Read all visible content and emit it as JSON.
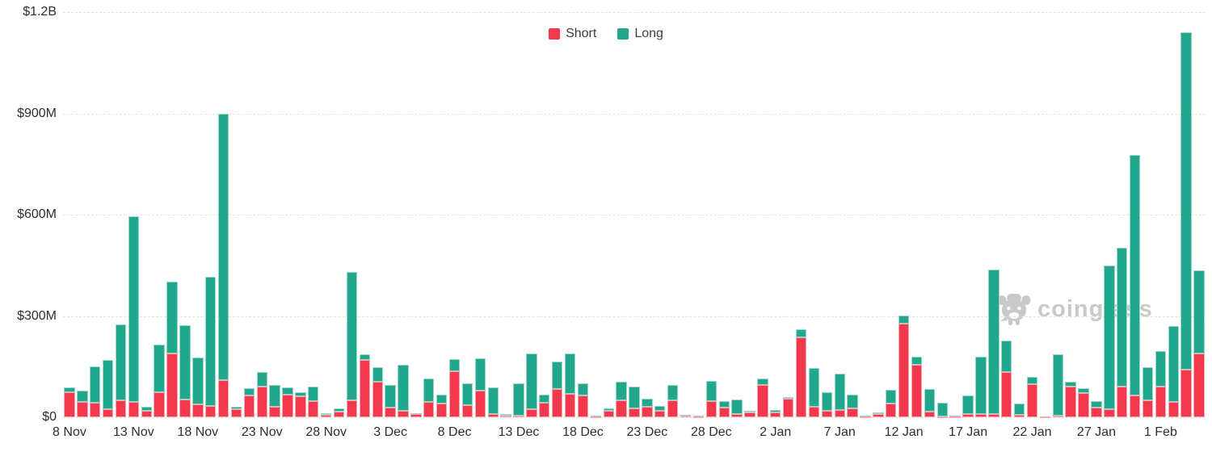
{
  "legend": {
    "items": [
      {
        "label": "Short",
        "color": "#f2394e"
      },
      {
        "label": "Long",
        "color": "#20a78c"
      }
    ]
  },
  "watermark": {
    "text": "coinglass"
  },
  "y_axis": {
    "ticks": [
      {
        "value": 0,
        "label": "$0"
      },
      {
        "value": 300,
        "label": "$300M"
      },
      {
        "value": 600,
        "label": "$600M"
      },
      {
        "value": 900,
        "label": "$900M"
      },
      {
        "value": 1200,
        "label": "$1.2B"
      }
    ]
  },
  "chart_data": {
    "type": "bar",
    "stacked": true,
    "unit": "USD millions",
    "ylim": [
      0,
      1200
    ],
    "grid": "horizontal-dashed",
    "legend_position": "top-center",
    "categories": [
      "8 Nov",
      "9 Nov",
      "10 Nov",
      "11 Nov",
      "12 Nov",
      "13 Nov",
      "14 Nov",
      "15 Nov",
      "16 Nov",
      "17 Nov",
      "18 Nov",
      "19 Nov",
      "20 Nov",
      "21 Nov",
      "22 Nov",
      "23 Nov",
      "24 Nov",
      "25 Nov",
      "26 Nov",
      "27 Nov",
      "28 Nov",
      "29 Nov",
      "30 Nov",
      "1 Dec",
      "2 Dec",
      "3 Dec",
      "4 Dec",
      "5 Dec",
      "6 Dec",
      "7 Dec",
      "8 Dec",
      "9 Dec",
      "10 Dec",
      "11 Dec",
      "12 Dec",
      "13 Dec",
      "14 Dec",
      "15 Dec",
      "16 Dec",
      "17 Dec",
      "18 Dec",
      "19 Dec",
      "20 Dec",
      "21 Dec",
      "22 Dec",
      "23 Dec",
      "24 Dec",
      "25 Dec",
      "26 Dec",
      "27 Dec",
      "28 Dec",
      "29 Dec",
      "30 Dec",
      "31 Dec",
      "1 Jan",
      "2 Jan",
      "3 Jan",
      "4 Jan",
      "5 Jan",
      "6 Jan",
      "7 Jan",
      "8 Jan",
      "9 Jan",
      "10 Jan",
      "11 Jan",
      "12 Jan",
      "13 Jan",
      "14 Jan",
      "15 Jan",
      "16 Jan",
      "17 Jan",
      "18 Jan",
      "19 Jan",
      "20 Jan",
      "21 Jan",
      "22 Jan",
      "23 Jan",
      "24 Jan",
      "25 Jan",
      "26 Jan",
      "27 Jan",
      "28 Jan",
      "29 Jan",
      "30 Jan",
      "31 Jan",
      "1 Feb",
      "2 Feb",
      "3 Feb",
      "4 Feb"
    ],
    "x_tick_labels": [
      "8 Nov",
      "13 Nov",
      "18 Nov",
      "23 Nov",
      "28 Nov",
      "3 Dec",
      "8 Dec",
      "13 Dec",
      "18 Dec",
      "23 Dec",
      "28 Dec",
      "2 Jan",
      "7 Jan",
      "12 Jan",
      "17 Jan",
      "22 Jan",
      "27 Jan",
      "1 Feb"
    ],
    "x_tick_interval": 5,
    "series": [
      {
        "name": "Short",
        "color": "#f2394e",
        "values": [
          75,
          46,
          44,
          25,
          50,
          45,
          20,
          75,
          188,
          53,
          38,
          33,
          110,
          25,
          64,
          90,
          31,
          67,
          62,
          47,
          6,
          17,
          50,
          170,
          106,
          29,
          18,
          9,
          45,
          41,
          136,
          36,
          79,
          9,
          4,
          4,
          25,
          44,
          84,
          70,
          64,
          3,
          18,
          50,
          26,
          30,
          18,
          49,
          4,
          2,
          47,
          29,
          10,
          15,
          95,
          14,
          54,
          237,
          32,
          20,
          21,
          27,
          3,
          9,
          41,
          278,
          156,
          16,
          3,
          2,
          9,
          10,
          10,
          134,
          8,
          98,
          2,
          5,
          91,
          71,
          29,
          23,
          92,
          65,
          50,
          92,
          45,
          140,
          190
        ]
      },
      {
        "name": "Long",
        "color": "#20a78c",
        "values": [
          13,
          32,
          106,
          145,
          225,
          550,
          10,
          140,
          214,
          219,
          140,
          384,
          789,
          6,
          22,
          45,
          65,
          21,
          12,
          44,
          5,
          10,
          380,
          16,
          42,
          67,
          137,
          4,
          69,
          25,
          36,
          64,
          96,
          80,
          5,
          96,
          165,
          24,
          80,
          118,
          36,
          2,
          8,
          56,
          64,
          25,
          16,
          46,
          2,
          2,
          61,
          20,
          43,
          3,
          20,
          7,
          6,
          24,
          115,
          54,
          107,
          39,
          2,
          5,
          41,
          24,
          24,
          68,
          41,
          2,
          56,
          170,
          427,
          94,
          33,
          22,
          1,
          182,
          15,
          16,
          20,
          426,
          409,
          713,
          98,
          105,
          225,
          1000,
          245
        ]
      }
    ]
  }
}
